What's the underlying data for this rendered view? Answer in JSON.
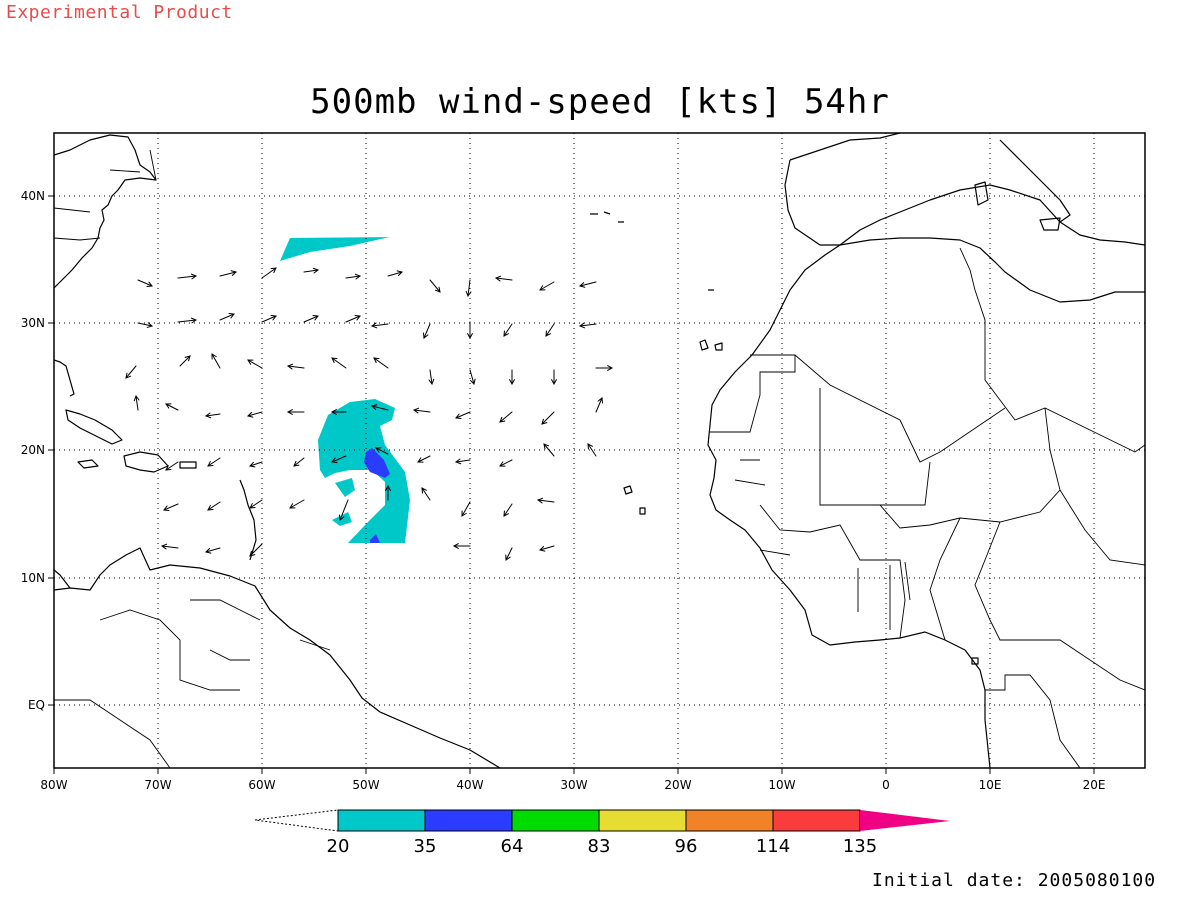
{
  "header": {
    "experimental_label": "Experimental Product",
    "title": "500mb wind-speed [kts] 54hr",
    "initial_date": "Initial date: 2005080100"
  },
  "map": {
    "lon_range": [
      -80,
      25
    ],
    "lat_range": [
      -5,
      45
    ],
    "lon_ticks": [
      "80W",
      "70W",
      "60W",
      "50W",
      "40W",
      "30W",
      "20W",
      "10W",
      "0",
      "10E",
      "20E"
    ],
    "lat_ticks": [
      "40N",
      "30N",
      "20N",
      "10N",
      "EQ"
    ],
    "grid": "dotted"
  },
  "colorbar": {
    "labels": [
      "20",
      "35",
      "64",
      "83",
      "96",
      "114",
      "135"
    ],
    "colors": [
      "#00c8c8",
      "#2a3cff",
      "#00dc00",
      "#e6dc32",
      "#f08228",
      "#fa3c3c",
      "#f00082"
    ]
  },
  "wind_shading": {
    "areas": [
      {
        "name": "northern-band",
        "level": "20-35 kts"
      },
      {
        "name": "main-swirl",
        "level": "20-35 kts"
      },
      {
        "name": "swirl-core",
        "level": "35-64 kts"
      }
    ]
  }
}
